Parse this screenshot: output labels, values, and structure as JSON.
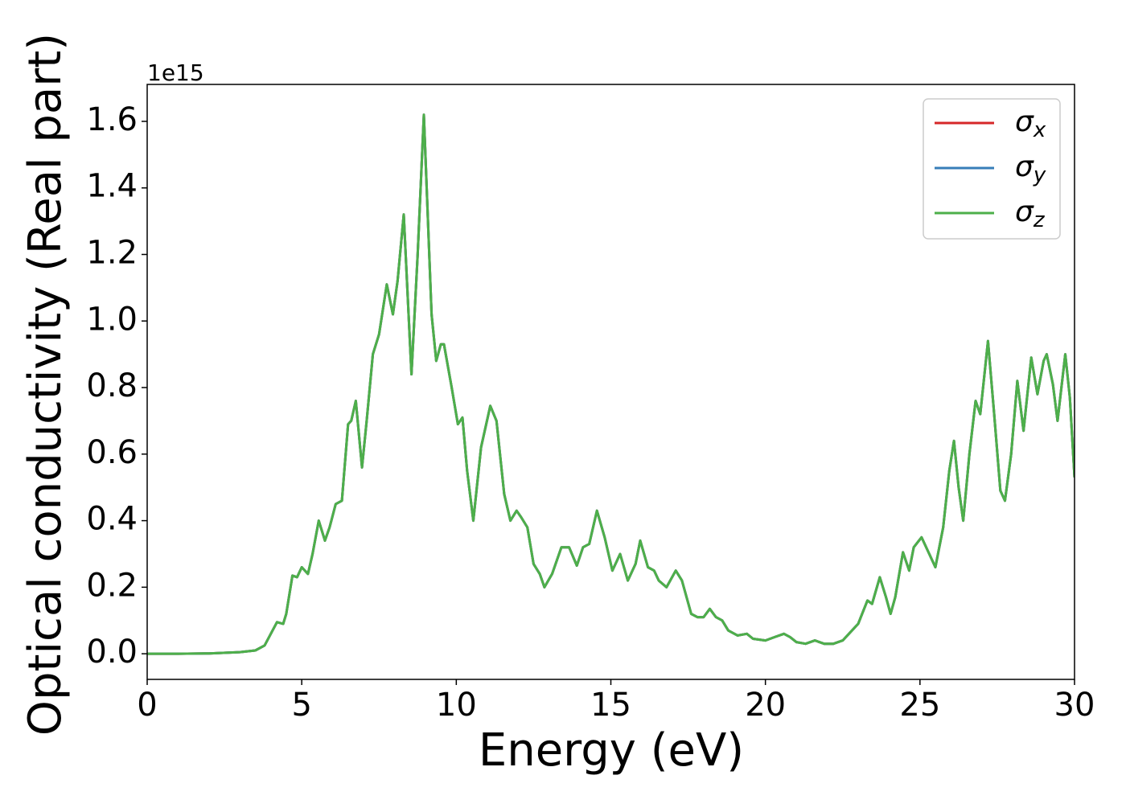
{
  "chart_data": {
    "type": "line",
    "xlabel": "Energy (eV)",
    "ylabel": "Optical conductivity (Real part)",
    "offset_label": "1e15",
    "xlim": [
      0,
      30
    ],
    "ylim": [
      -0.077,
      1.711
    ],
    "xticks": [
      0,
      5,
      10,
      15,
      20,
      25,
      30
    ],
    "yticks": [
      {
        "value": 0,
        "label": "0.0"
      },
      0.2,
      0.4,
      0.6,
      0.8,
      {
        "value": 1,
        "label": "1.0"
      },
      1.2,
      1.4,
      1.6
    ],
    "legend": "upper right",
    "x": [
      0,
      1,
      2,
      3,
      3.5,
      3.8,
      4.0,
      4.2,
      4.4,
      4.5,
      4.7,
      4.85,
      5.0,
      5.2,
      5.35,
      5.55,
      5.75,
      5.9,
      6.1,
      6.3,
      6.5,
      6.6,
      6.75,
      6.95,
      7.1,
      7.3,
      7.5,
      7.75,
      7.95,
      8.1,
      8.3,
      8.55,
      8.75,
      8.95,
      9.2,
      9.35,
      9.5,
      9.6,
      9.85,
      10.05,
      10.2,
      10.35,
      10.55,
      10.8,
      11.1,
      11.3,
      11.55,
      11.75,
      11.95,
      12.1,
      12.3,
      12.5,
      12.7,
      12.85,
      13.1,
      13.4,
      13.65,
      13.9,
      14.1,
      14.3,
      14.55,
      14.8,
      15.05,
      15.3,
      15.55,
      15.8,
      15.95,
      16.2,
      16.4,
      16.55,
      16.8,
      17.1,
      17.3,
      17.6,
      17.8,
      18.0,
      18.2,
      18.4,
      18.6,
      18.8,
      19.1,
      19.4,
      19.6,
      20.0,
      20.3,
      20.6,
      20.8,
      21.0,
      21.3,
      21.6,
      21.9,
      22.2,
      22.5,
      22.8,
      23.0,
      23.3,
      23.45,
      23.7,
      23.9,
      24.05,
      24.2,
      24.45,
      24.65,
      24.8,
      25.05,
      25.3,
      25.5,
      25.75,
      25.95,
      26.1,
      26.25,
      26.4,
      26.6,
      26.8,
      26.95,
      27.2,
      27.4,
      27.6,
      27.75,
      27.95,
      28.15,
      28.35,
      28.6,
      28.8,
      29.0,
      29.1,
      29.3,
      29.45,
      29.7,
      29.85,
      30
    ],
    "series": [
      {
        "name": "σx",
        "color": "#d62728",
        "values": [
          0,
          0,
          0.001,
          0.005,
          0.01,
          0.025,
          0.06,
          0.095,
          0.09,
          0.12,
          0.235,
          0.23,
          0.26,
          0.24,
          0.3,
          0.4,
          0.34,
          0.38,
          0.45,
          0.46,
          0.69,
          0.7,
          0.76,
          0.56,
          0.7,
          0.9,
          0.96,
          1.11,
          1.02,
          1.12,
          1.32,
          0.84,
          1.2,
          1.62,
          1.02,
          0.88,
          0.93,
          0.93,
          0.8,
          0.69,
          0.71,
          0.55,
          0.4,
          0.62,
          0.745,
          0.7,
          0.48,
          0.4,
          0.43,
          0.41,
          0.38,
          0.27,
          0.24,
          0.2,
          0.24,
          0.32,
          0.32,
          0.265,
          0.32,
          0.33,
          0.43,
          0.35,
          0.25,
          0.3,
          0.22,
          0.27,
          0.34,
          0.26,
          0.25,
          0.22,
          0.2,
          0.25,
          0.22,
          0.12,
          0.11,
          0.11,
          0.135,
          0.11,
          0.1,
          0.07,
          0.055,
          0.06,
          0.045,
          0.04,
          0.05,
          0.06,
          0.05,
          0.035,
          0.03,
          0.04,
          0.03,
          0.03,
          0.04,
          0.07,
          0.09,
          0.16,
          0.15,
          0.23,
          0.17,
          0.12,
          0.17,
          0.305,
          0.25,
          0.32,
          0.35,
          0.3,
          0.26,
          0.38,
          0.55,
          0.64,
          0.5,
          0.4,
          0.6,
          0.76,
          0.72,
          0.94,
          0.72,
          0.49,
          0.46,
          0.6,
          0.82,
          0.67,
          0.89,
          0.78,
          0.88,
          0.9,
          0.81,
          0.7,
          0.9,
          0.77,
          0.53
        ]
      },
      {
        "name": "σy",
        "color": "#377eb8",
        "values": [
          0,
          0,
          0.001,
          0.005,
          0.01,
          0.025,
          0.06,
          0.095,
          0.09,
          0.12,
          0.235,
          0.23,
          0.26,
          0.24,
          0.3,
          0.4,
          0.34,
          0.38,
          0.45,
          0.46,
          0.69,
          0.7,
          0.76,
          0.56,
          0.7,
          0.9,
          0.96,
          1.11,
          1.02,
          1.12,
          1.32,
          0.84,
          1.2,
          1.62,
          1.02,
          0.88,
          0.93,
          0.93,
          0.8,
          0.69,
          0.71,
          0.55,
          0.4,
          0.62,
          0.745,
          0.7,
          0.48,
          0.4,
          0.43,
          0.41,
          0.38,
          0.27,
          0.24,
          0.2,
          0.24,
          0.32,
          0.32,
          0.265,
          0.32,
          0.33,
          0.43,
          0.35,
          0.25,
          0.3,
          0.22,
          0.27,
          0.34,
          0.26,
          0.25,
          0.22,
          0.2,
          0.25,
          0.22,
          0.12,
          0.11,
          0.11,
          0.135,
          0.11,
          0.1,
          0.07,
          0.055,
          0.06,
          0.045,
          0.04,
          0.05,
          0.06,
          0.05,
          0.035,
          0.03,
          0.04,
          0.03,
          0.03,
          0.04,
          0.07,
          0.09,
          0.16,
          0.15,
          0.23,
          0.17,
          0.12,
          0.17,
          0.305,
          0.25,
          0.32,
          0.35,
          0.3,
          0.26,
          0.38,
          0.55,
          0.64,
          0.5,
          0.4,
          0.6,
          0.76,
          0.72,
          0.94,
          0.72,
          0.49,
          0.46,
          0.6,
          0.82,
          0.67,
          0.89,
          0.78,
          0.88,
          0.9,
          0.81,
          0.7,
          0.9,
          0.77,
          0.53
        ]
      },
      {
        "name": "σz",
        "color": "#4daf4a",
        "values": [
          0,
          0,
          0.001,
          0.005,
          0.01,
          0.025,
          0.06,
          0.095,
          0.09,
          0.12,
          0.235,
          0.23,
          0.26,
          0.24,
          0.3,
          0.4,
          0.34,
          0.38,
          0.45,
          0.46,
          0.69,
          0.7,
          0.76,
          0.56,
          0.7,
          0.9,
          0.96,
          1.11,
          1.02,
          1.12,
          1.32,
          0.84,
          1.2,
          1.62,
          1.02,
          0.88,
          0.93,
          0.93,
          0.8,
          0.69,
          0.71,
          0.55,
          0.4,
          0.62,
          0.745,
          0.7,
          0.48,
          0.4,
          0.43,
          0.41,
          0.38,
          0.27,
          0.24,
          0.2,
          0.24,
          0.32,
          0.32,
          0.265,
          0.32,
          0.33,
          0.43,
          0.35,
          0.25,
          0.3,
          0.22,
          0.27,
          0.34,
          0.26,
          0.25,
          0.22,
          0.2,
          0.25,
          0.22,
          0.12,
          0.11,
          0.11,
          0.135,
          0.11,
          0.1,
          0.07,
          0.055,
          0.06,
          0.045,
          0.04,
          0.05,
          0.06,
          0.05,
          0.035,
          0.03,
          0.04,
          0.03,
          0.03,
          0.04,
          0.07,
          0.09,
          0.16,
          0.15,
          0.23,
          0.17,
          0.12,
          0.17,
          0.305,
          0.25,
          0.32,
          0.35,
          0.3,
          0.26,
          0.38,
          0.55,
          0.64,
          0.5,
          0.4,
          0.6,
          0.76,
          0.72,
          0.94,
          0.72,
          0.49,
          0.46,
          0.6,
          0.82,
          0.67,
          0.89,
          0.78,
          0.88,
          0.9,
          0.81,
          0.7,
          0.9,
          0.77,
          0.53
        ]
      }
    ]
  }
}
